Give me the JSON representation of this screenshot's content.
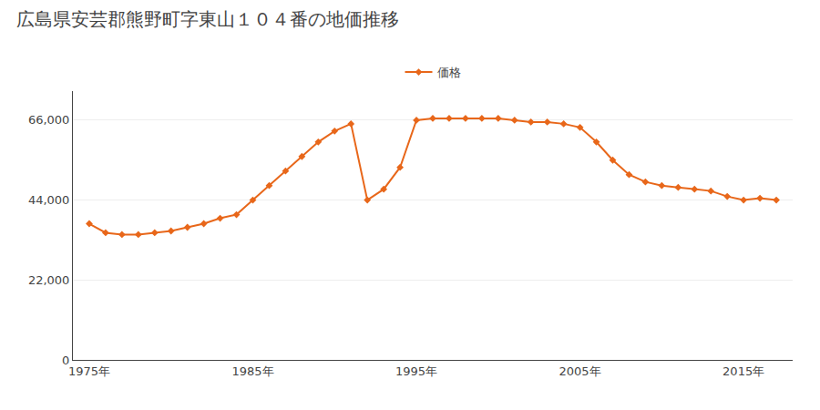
{
  "chart_data": {
    "type": "line",
    "title": "広島県安芸郡熊野町字東山１０４番の地価推移",
    "x": [
      1975,
      1976,
      1977,
      1978,
      1979,
      1980,
      1981,
      1982,
      1983,
      1984,
      1985,
      1986,
      1987,
      1988,
      1989,
      1990,
      1991,
      1992,
      1993,
      1994,
      1995,
      1996,
      1997,
      1998,
      1999,
      2000,
      2001,
      2002,
      2003,
      2004,
      2005,
      2006,
      2007,
      2008,
      2009,
      2010,
      2011,
      2012,
      2013,
      2014,
      2015,
      2016,
      2017
    ],
    "series": [
      {
        "name": "価格",
        "color": "#E8671A",
        "marker": "diamond",
        "values": [
          37500,
          35000,
          34500,
          34500,
          35000,
          35500,
          36500,
          37500,
          39000,
          40000,
          44000,
          48000,
          52000,
          56000,
          60000,
          63000,
          65000,
          44000,
          47000,
          53000,
          66000,
          66500,
          66500,
          66500,
          66500,
          66500,
          66000,
          65500,
          65500,
          65000,
          64000,
          60000,
          55000,
          51000,
          49000,
          48000,
          47500,
          47000,
          46500,
          45000,
          44000,
          44500,
          44000
        ]
      }
    ],
    "xlim": [
      1974,
      2018
    ],
    "xticks": [
      {
        "value": 1975,
        "label": "1975年"
      },
      {
        "value": 1985,
        "label": "1985年"
      },
      {
        "value": 1995,
        "label": "1995年"
      },
      {
        "value": 2005,
        "label": "2005年"
      },
      {
        "value": 2015,
        "label": "2015年"
      }
    ],
    "ylim": [
      0,
      74000
    ],
    "yticks": [
      0,
      {
        "value": 22000,
        "label": "22,000"
      },
      {
        "value": 44000,
        "label": "44,000"
      },
      {
        "value": 66000,
        "label": "66,000"
      }
    ],
    "grid": "y",
    "legend": "top"
  }
}
